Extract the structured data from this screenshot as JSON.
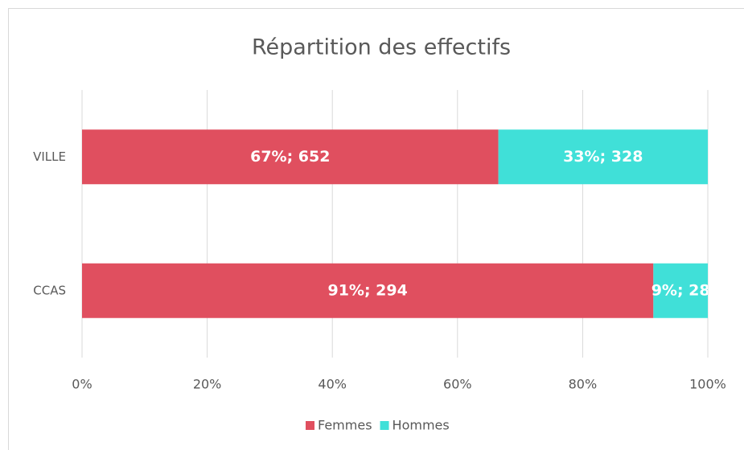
{
  "chart_data": {
    "type": "stacked-bar-horizontal",
    "title": "Répartition des effectifs",
    "categories": [
      "VILLE",
      "CCAS"
    ],
    "series": [
      {
        "name": "Femmes",
        "color": "#e04f5f",
        "values": [
          66.53,
          91.3
        ],
        "value_labels": [
          "67%; 652",
          "91%; 294"
        ]
      },
      {
        "name": "Hommes",
        "color": "#40e0d8",
        "values": [
          33.47,
          8.7
        ],
        "value_labels": [
          "33%; 328",
          "9%; 28"
        ]
      }
    ],
    "xlim": [
      0,
      100
    ],
    "xticks": [
      {
        "value": 0,
        "label": "0%"
      },
      {
        "value": 20,
        "label": "20%"
      },
      {
        "value": 40,
        "label": "40%"
      },
      {
        "value": 60,
        "label": "60%"
      },
      {
        "value": 80,
        "label": "80%"
      },
      {
        "value": 100,
        "label": "100%"
      }
    ],
    "grid": true,
    "legend": "bottom"
  }
}
